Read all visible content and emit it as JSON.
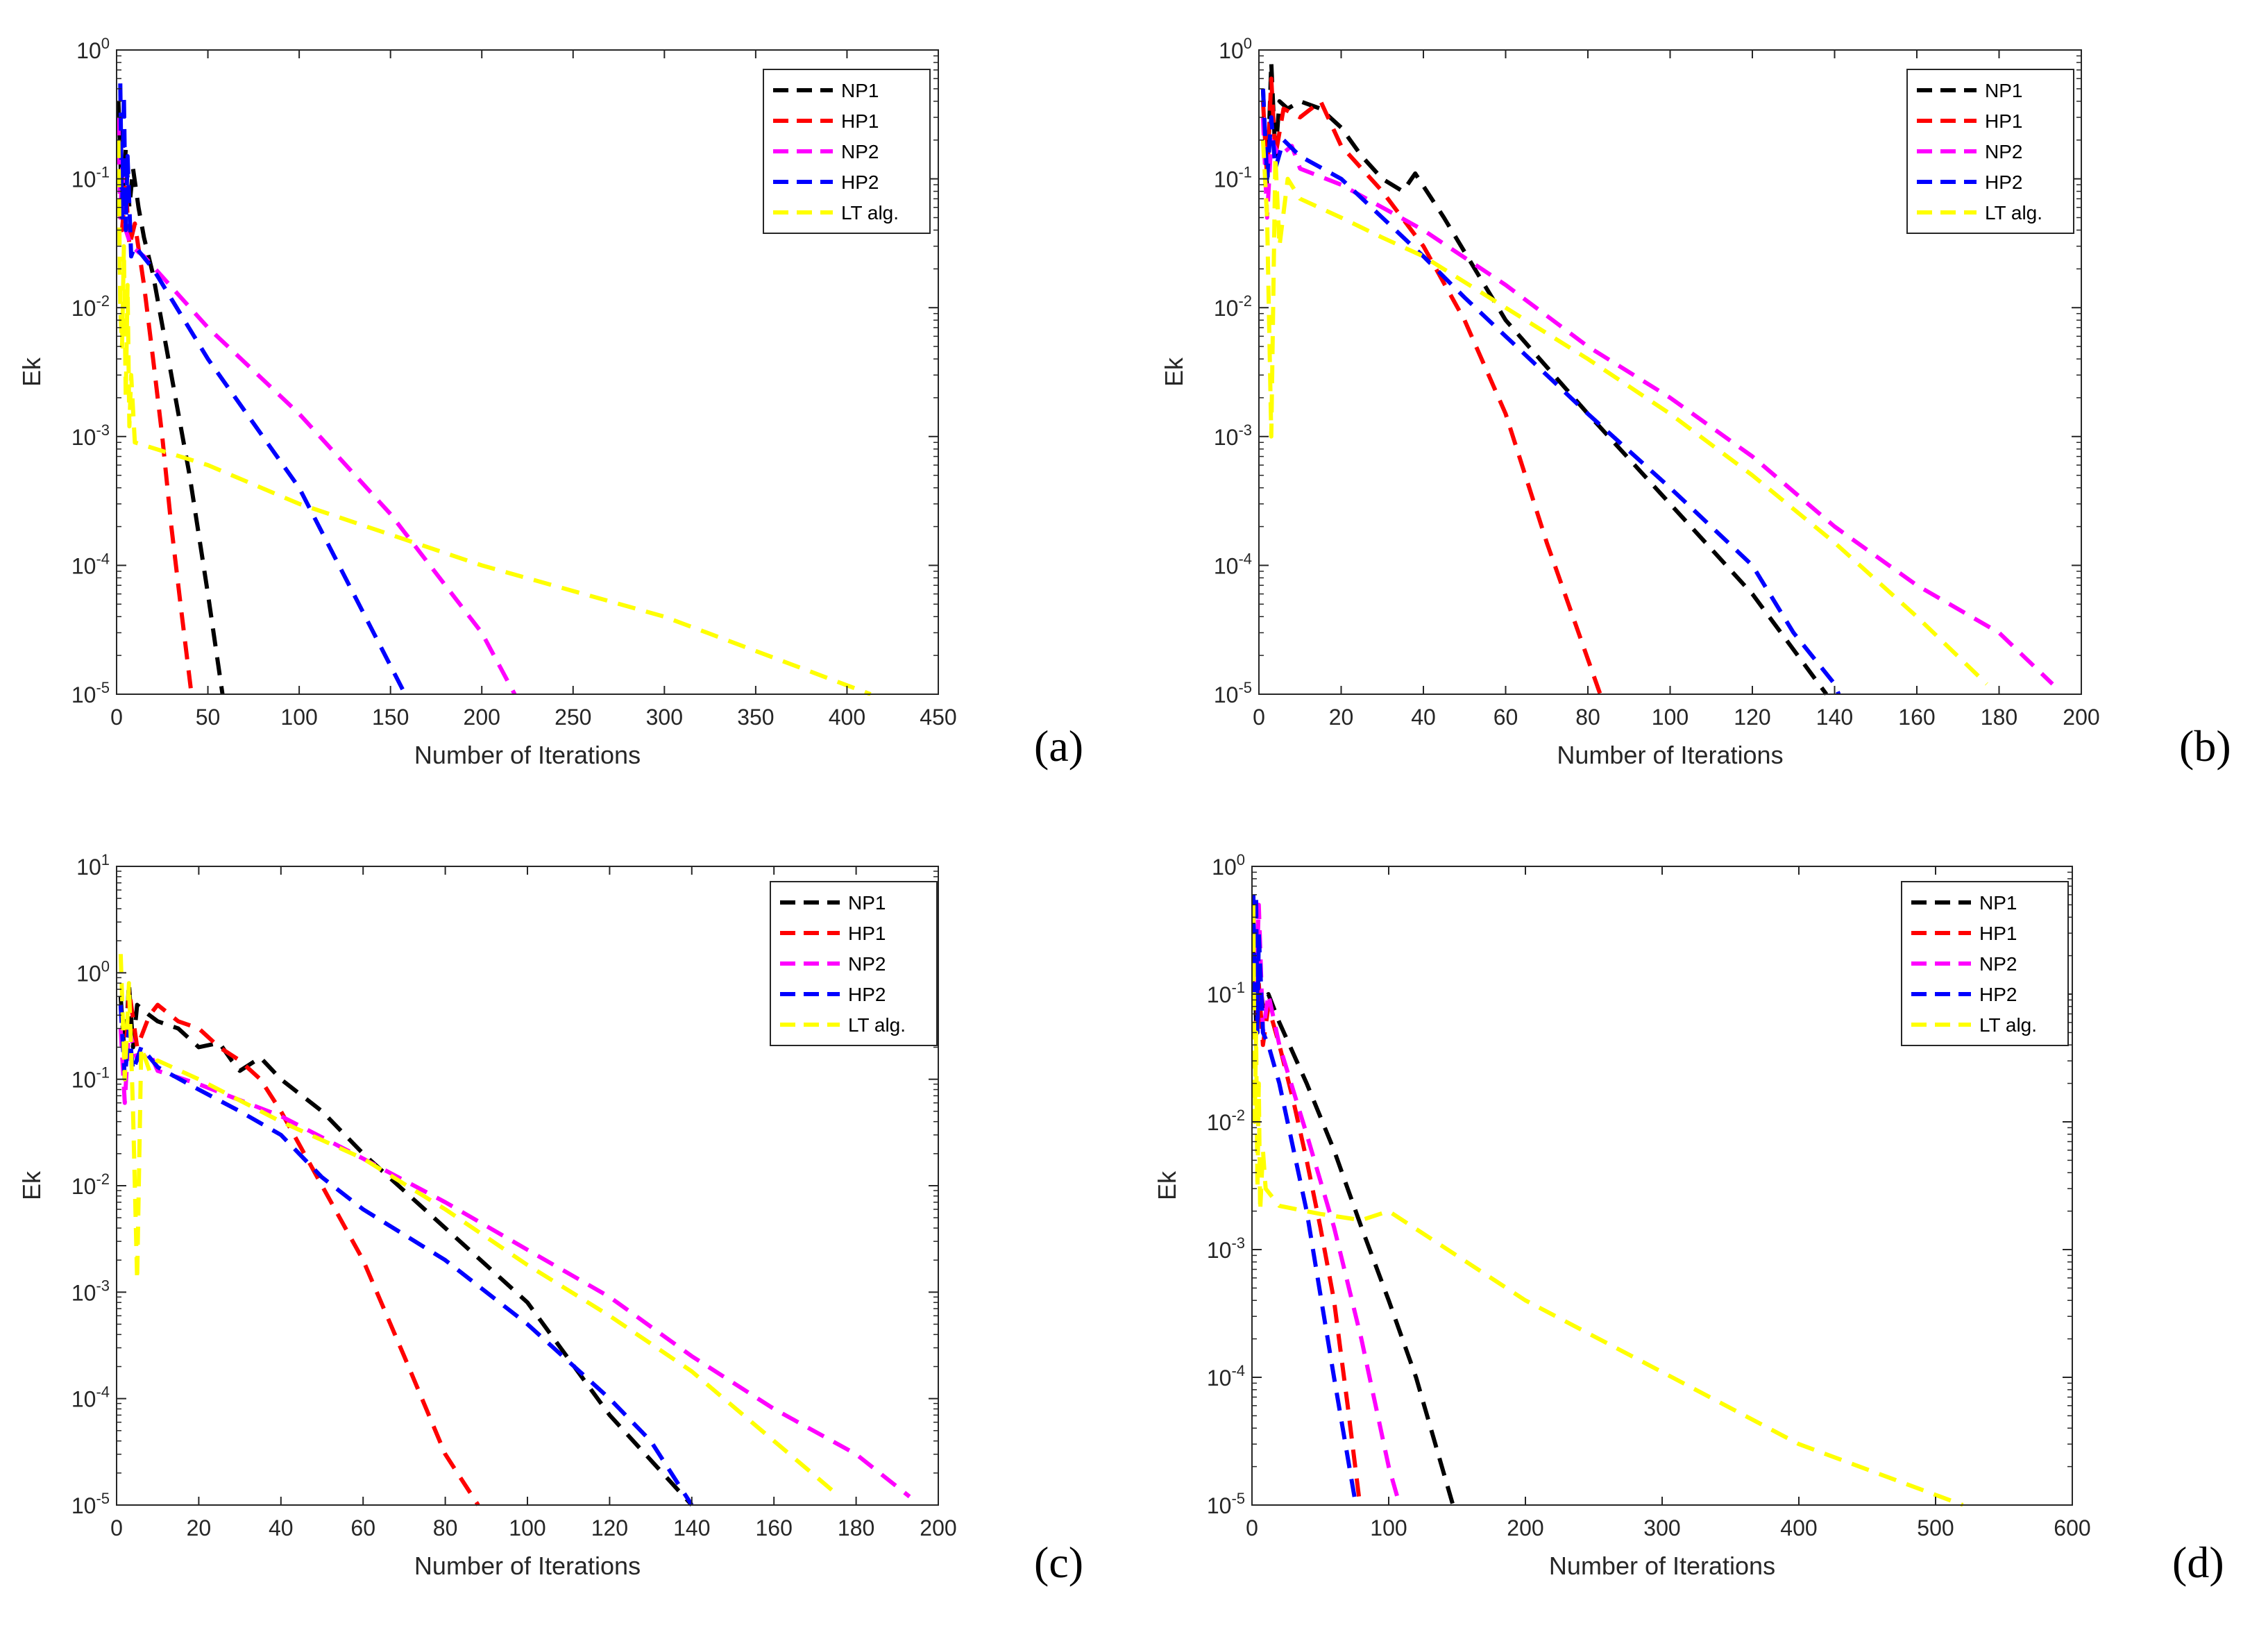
{
  "figure": {
    "panels": [
      "a",
      "b",
      "c",
      "d"
    ]
  },
  "chart_data": [
    {
      "id": "a",
      "type": "line",
      "yscale": "log",
      "panel_label": "(a)",
      "xlabel": "Number of Iterations",
      "ylabel": "Ek",
      "xlim": [
        0,
        450
      ],
      "ylim_exp": [
        -5,
        0
      ],
      "xticks": [
        "0",
        "50",
        "100",
        "150",
        "200",
        "250",
        "300",
        "350",
        "400",
        "450"
      ],
      "ytick_exps": [
        "0",
        "-1",
        "-2",
        "-3",
        "-4",
        "-5"
      ],
      "ytick_base": "10",
      "legend_position": "top-right",
      "series": [
        {
          "name": "NP1",
          "color": "#000000",
          "x": [
            1,
            3,
            5,
            7,
            9,
            12,
            15,
            20,
            30,
            40,
            50,
            58
          ],
          "y": [
            0.4,
            0.06,
            0.17,
            0.06,
            0.12,
            0.06,
            0.035,
            0.018,
            0.003,
            0.0005,
            6e-05,
            1e-05
          ]
        },
        {
          "name": "HP1",
          "color": "#ff0000",
          "x": [
            1,
            3,
            5,
            7,
            10,
            15,
            20,
            25,
            30,
            35,
            41
          ],
          "y": [
            0.2,
            0.04,
            0.09,
            0.03,
            0.045,
            0.015,
            0.004,
            0.001,
            0.0002,
            5e-05,
            1e-05
          ]
        },
        {
          "name": "NP2",
          "color": "#ff00ff",
          "x": [
            1,
            2,
            3,
            5,
            8,
            15,
            50,
            100,
            150,
            200,
            218
          ],
          "y": [
            0.3,
            0.05,
            0.12,
            0.04,
            0.03,
            0.025,
            0.007,
            0.0015,
            0.00025,
            3e-05,
            1e-05
          ]
        },
        {
          "name": "HP2",
          "color": "#0000ff",
          "x": [
            2,
            3,
            4,
            5,
            6,
            8,
            10,
            20,
            50,
            100,
            158
          ],
          "y": [
            0.55,
            0.05,
            0.45,
            0.04,
            0.15,
            0.025,
            0.03,
            0.02,
            0.004,
            0.0004,
            1e-05
          ]
        },
        {
          "name": "LT alg.",
          "color": "#ffff00",
          "x": [
            1,
            2,
            3,
            4,
            5,
            6,
            7,
            8,
            10,
            50,
            100,
            200,
            300,
            413
          ],
          "y": [
            0.2,
            0.01,
            0.005,
            0.03,
            0.002,
            0.015,
            0.0012,
            0.003,
            0.0009,
            0.0006,
            0.0003,
            0.0001,
            4e-05,
            1e-05
          ]
        }
      ]
    },
    {
      "id": "b",
      "type": "line",
      "yscale": "log",
      "panel_label": "(b)",
      "xlabel": "Number of Iterations",
      "ylabel": "Ek",
      "xlim": [
        0,
        200
      ],
      "ylim_exp": [
        -5,
        0
      ],
      "xticks": [
        "0",
        "20",
        "40",
        "60",
        "80",
        "100",
        "120",
        "140",
        "160",
        "180",
        "200"
      ],
      "ytick_exps": [
        "0",
        "-1",
        "-2",
        "-3",
        "-4",
        "-5"
      ],
      "ytick_base": "10",
      "legend_position": "top-right",
      "series": [
        {
          "name": "NP1",
          "color": "#000000",
          "x": [
            1,
            2,
            3,
            4,
            5,
            7,
            10,
            15,
            20,
            25,
            30,
            35,
            38,
            45,
            60,
            80,
            100,
            120,
            138
          ],
          "y": [
            0.5,
            0.08,
            0.8,
            0.15,
            0.4,
            0.35,
            0.4,
            0.35,
            0.25,
            0.15,
            0.1,
            0.08,
            0.11,
            0.05,
            0.008,
            0.0015,
            0.0003,
            6e-05,
            1e-05
          ]
        },
        {
          "name": "HP1",
          "color": "#ff0000",
          "x": [
            1,
            2,
            3,
            4,
            6,
            10,
            15,
            20,
            25,
            30,
            40,
            50,
            60,
            70,
            83
          ],
          "y": [
            0.4,
            0.1,
            0.6,
            0.15,
            0.35,
            0.3,
            0.4,
            0.18,
            0.12,
            0.08,
            0.03,
            0.008,
            0.0015,
            0.00015,
            1e-05
          ]
        },
        {
          "name": "NP2",
          "color": "#ff00ff",
          "x": [
            1,
            2,
            3,
            5,
            8,
            10,
            20,
            40,
            60,
            80,
            100,
            120,
            140,
            160,
            180,
            193
          ],
          "y": [
            0.3,
            0.05,
            0.2,
            0.15,
            0.18,
            0.12,
            0.09,
            0.04,
            0.015,
            0.005,
            0.002,
            0.0007,
            0.0002,
            7e-05,
            3e-05,
            1.2e-05
          ]
        },
        {
          "name": "HP2",
          "color": "#0000ff",
          "x": [
            1,
            2,
            3,
            4,
            6,
            10,
            20,
            30,
            40,
            50,
            60,
            80,
            100,
            120,
            130,
            140,
            141
          ],
          "y": [
            0.5,
            0.1,
            0.3,
            0.12,
            0.2,
            0.15,
            0.1,
            0.05,
            0.025,
            0.012,
            0.006,
            0.0015,
            0.0004,
            0.0001,
            3e-05,
            1.2e-05,
            1e-05
          ]
        },
        {
          "name": "LT alg.",
          "color": "#ffff00",
          "x": [
            1,
            2,
            3,
            4,
            5,
            7,
            10,
            20,
            30,
            40,
            60,
            80,
            100,
            120,
            140,
            160,
            177
          ],
          "y": [
            0.2,
            0.05,
            0.001,
            0.15,
            0.03,
            0.1,
            0.07,
            0.05,
            0.035,
            0.025,
            0.01,
            0.004,
            0.0015,
            0.0005,
            0.00015,
            4e-05,
            1.2e-05
          ]
        }
      ]
    },
    {
      "id": "c",
      "type": "line",
      "yscale": "log",
      "panel_label": "(c)",
      "xlabel": "Number of Iterations",
      "ylabel": "Ek",
      "xlim": [
        0,
        200
      ],
      "ylim_exp": [
        -5,
        1
      ],
      "xticks": [
        "0",
        "20",
        "40",
        "60",
        "80",
        "100",
        "120",
        "140",
        "160",
        "180",
        "200"
      ],
      "ytick_exps": [
        "1",
        "0",
        "-1",
        "-2",
        "-3",
        "-4",
        "-5"
      ],
      "ytick_base": "10",
      "legend_position": "top-right",
      "series": [
        {
          "name": "NP1",
          "color": "#000000",
          "x": [
            1,
            2,
            3,
            4,
            5,
            8,
            10,
            15,
            20,
            25,
            28,
            30,
            35,
            40,
            50,
            60,
            80,
            100,
            120,
            140
          ],
          "y": [
            0.6,
            0.15,
            0.8,
            0.2,
            0.5,
            0.4,
            0.35,
            0.3,
            0.2,
            0.22,
            0.15,
            0.12,
            0.16,
            0.1,
            0.05,
            0.02,
            0.004,
            0.0008,
            7e-05,
            1e-05
          ]
        },
        {
          "name": "HP1",
          "color": "#ff0000",
          "x": [
            1,
            2,
            3,
            5,
            8,
            10,
            15,
            20,
            25,
            30,
            35,
            40,
            50,
            60,
            70,
            80,
            88
          ],
          "y": [
            0.5,
            0.1,
            0.7,
            0.2,
            0.4,
            0.5,
            0.35,
            0.3,
            0.2,
            0.15,
            0.1,
            0.05,
            0.01,
            0.002,
            0.00025,
            3e-05,
            1e-05
          ]
        },
        {
          "name": "NP2",
          "color": "#ff00ff",
          "x": [
            1,
            2,
            3,
            5,
            8,
            10,
            20,
            40,
            60,
            80,
            100,
            120,
            140,
            160,
            180,
            193
          ],
          "y": [
            0.3,
            0.06,
            0.3,
            0.15,
            0.18,
            0.12,
            0.09,
            0.045,
            0.018,
            0.007,
            0.0025,
            0.0009,
            0.00025,
            8e-05,
            3e-05,
            1.2e-05
          ]
        },
        {
          "name": "HP2",
          "color": "#0000ff",
          "x": [
            1,
            2,
            3,
            4,
            6,
            10,
            20,
            30,
            40,
            50,
            60,
            80,
            100,
            120,
            130,
            140
          ],
          "y": [
            0.5,
            0.1,
            0.3,
            0.12,
            0.2,
            0.13,
            0.08,
            0.05,
            0.03,
            0.012,
            0.006,
            0.002,
            0.0005,
            0.0001,
            4e-05,
            1e-05
          ]
        },
        {
          "name": "LT alg.",
          "color": "#ffff00",
          "x": [
            1,
            2,
            3,
            4,
            5,
            6,
            8,
            10,
            20,
            40,
            60,
            80,
            100,
            120,
            140,
            160,
            176
          ],
          "y": [
            1.5,
            0.1,
            0.8,
            0.05,
            0.0013,
            0.2,
            0.12,
            0.15,
            0.1,
            0.04,
            0.018,
            0.006,
            0.0018,
            0.0006,
            0.00018,
            4e-05,
            1.2e-05
          ]
        }
      ]
    },
    {
      "id": "d",
      "type": "line",
      "yscale": "log",
      "panel_label": "(d)",
      "xlabel": "Number of Iterations",
      "ylabel": "Ek",
      "xlim": [
        0,
        600
      ],
      "ylim_exp": [
        -5,
        0
      ],
      "xticks": [
        "0",
        "100",
        "200",
        "300",
        "400",
        "500",
        "600"
      ],
      "ytick_exps": [
        "0",
        "-1",
        "-2",
        "-3",
        "-4",
        "-5"
      ],
      "ytick_base": "10",
      "legend_position": "top-right",
      "series": [
        {
          "name": "NP1",
          "color": "#000000",
          "x": [
            1,
            3,
            5,
            8,
            12,
            20,
            40,
            60,
            80,
            100,
            120,
            147
          ],
          "y": [
            0.4,
            0.06,
            0.15,
            0.08,
            0.1,
            0.06,
            0.02,
            0.006,
            0.0015,
            0.0004,
            0.0001,
            1e-05
          ]
        },
        {
          "name": "HP1",
          "color": "#ff0000",
          "x": [
            1,
            3,
            5,
            8,
            12,
            20,
            30,
            40,
            50,
            60,
            70,
            79
          ],
          "y": [
            0.3,
            0.05,
            0.12,
            0.04,
            0.08,
            0.04,
            0.015,
            0.005,
            0.0015,
            0.0004,
            6e-05,
            1e-05
          ]
        },
        {
          "name": "NP2",
          "color": "#ff00ff",
          "x": [
            1,
            3,
            5,
            8,
            12,
            20,
            40,
            60,
            80,
            100,
            108
          ],
          "y": [
            0.5,
            0.1,
            0.5,
            0.05,
            0.1,
            0.04,
            0.008,
            0.0015,
            0.0002,
            2e-05,
            1e-05
          ]
        },
        {
          "name": "HP2",
          "color": "#0000ff",
          "x": [
            1,
            2,
            3,
            4,
            5,
            8,
            12,
            20,
            40,
            60,
            76
          ],
          "y": [
            0.6,
            0.1,
            0.6,
            0.05,
            0.3,
            0.05,
            0.04,
            0.02,
            0.002,
            0.0001,
            1e-05
          ]
        },
        {
          "name": "LT alg.",
          "color": "#ffff00",
          "x": [
            1,
            2,
            3,
            4,
            5,
            6,
            8,
            10,
            20,
            50,
            80,
            100,
            200,
            300,
            400,
            520
          ],
          "y": [
            0.5,
            0.01,
            0.05,
            0.003,
            0.02,
            0.002,
            0.006,
            0.003,
            0.0022,
            0.0019,
            0.0017,
            0.002,
            0.0004,
            0.00011,
            3e-05,
            1e-05
          ]
        }
      ]
    }
  ]
}
